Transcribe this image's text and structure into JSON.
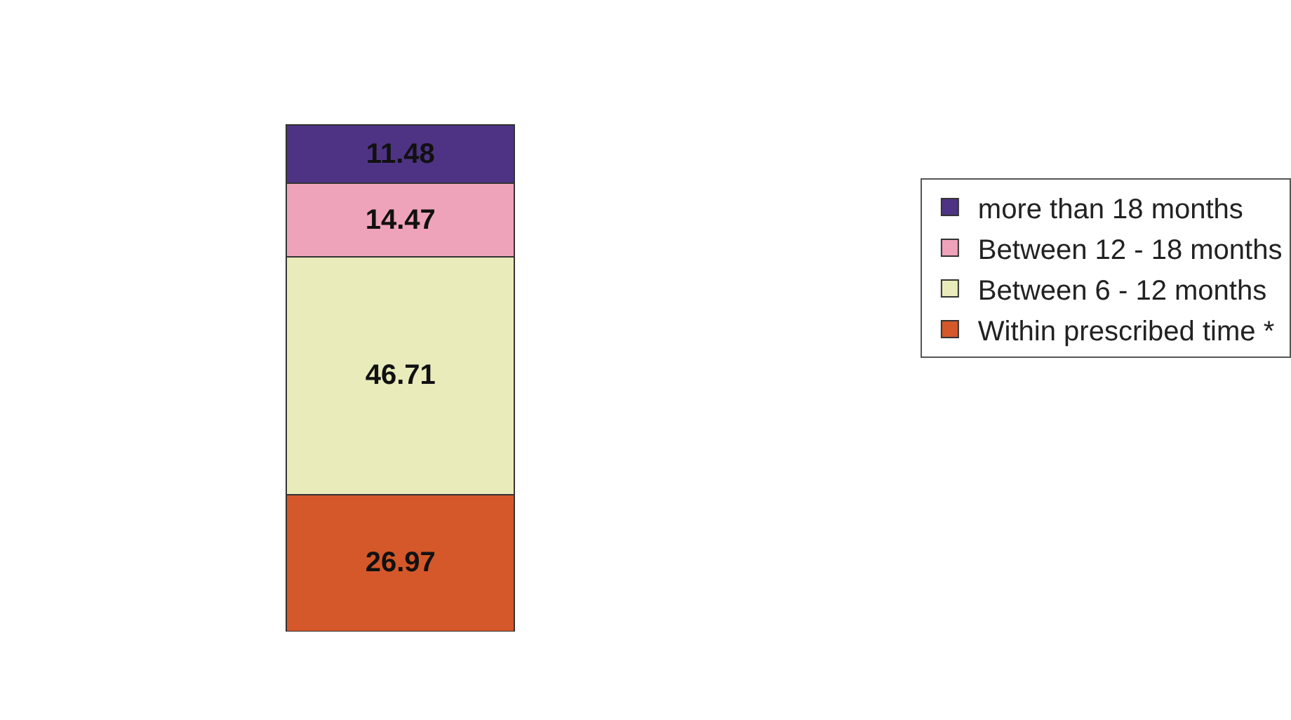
{
  "chart_data": {
    "type": "bar",
    "stacked": true,
    "categories": [
      null
    ],
    "data_labels": true,
    "legend": "right",
    "series": [
      {
        "name": "Within prescribed time *",
        "color": "#d4582a",
        "values": [
          26.97
        ]
      },
      {
        "name": "Between 6 - 12 months",
        "color": "#e9ebbb",
        "values": [
          46.71
        ]
      },
      {
        "name": "Between 12 - 18 months",
        "color": "#eea3bb",
        "values": [
          14.47
        ]
      },
      {
        "name": "more than 18 months",
        "color": "#4e3384",
        "values": [
          11.48
        ]
      }
    ]
  }
}
